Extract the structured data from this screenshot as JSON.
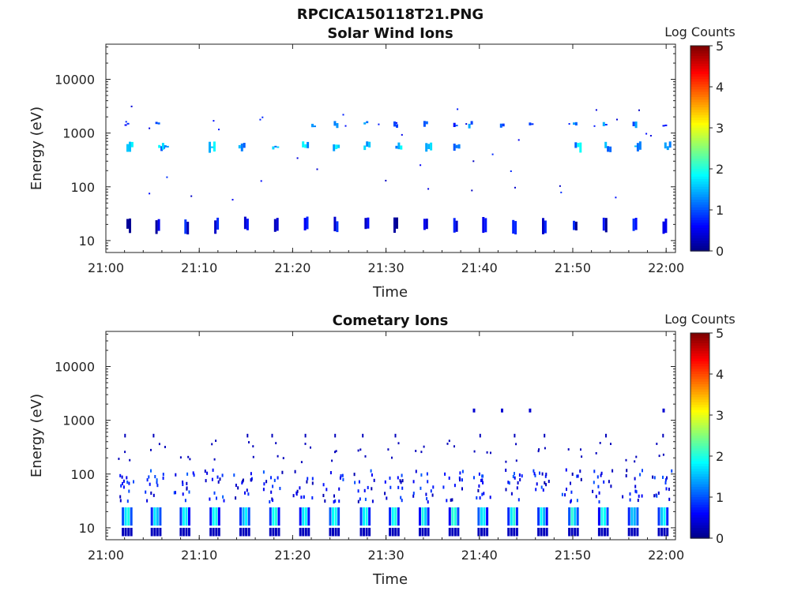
{
  "figure_title": "RPCICA150118T21.PNG",
  "colors": {
    "colormap": [
      "#00007f",
      "#0000ff",
      "#007fff",
      "#00ffff",
      "#7fff7f",
      "#ffff00",
      "#ff7f00",
      "#ff0000",
      "#7f0000"
    ]
  },
  "chart_data": [
    {
      "type": "heatmap",
      "title": "Solar Wind Ions",
      "xlabel": "Time",
      "ylabel": "Energy (eV)",
      "yscale": "log",
      "ylim": [
        6,
        45000
      ],
      "xlim": [
        "21:00",
        "22:01"
      ],
      "x_ticks": [
        "21:00",
        "21:10",
        "21:20",
        "21:30",
        "21:40",
        "21:50",
        "22:00"
      ],
      "y_ticks": [
        "10",
        "100",
        "1000",
        "10000"
      ],
      "colorbar": {
        "label": "Log Counts",
        "ticks": [
          "0",
          "1",
          "2",
          "3",
          "4",
          "5"
        ],
        "range": [
          0,
          5
        ]
      },
      "grid": false,
      "sweep_times_min": [
        2.2,
        5.3,
        8.4,
        11.6,
        14.8,
        18.0,
        21.2,
        24.4,
        27.7,
        30.8,
        34.0,
        37.2,
        40.3,
        43.5,
        46.7,
        50.0,
        53.2,
        56.4,
        59.6
      ],
      "bands": [
        {
          "name": "band-1500eV",
          "energy_ev": [
            1200,
            1700
          ],
          "times_min": [
            2.0,
            5.3,
            22.0,
            24.4,
            27.6,
            30.8,
            34.0,
            37.2,
            38.8,
            42.2,
            45.3,
            50.0,
            53.2,
            56.4,
            59.6
          ],
          "level": 1.0
        },
        {
          "name": "band-550eV",
          "energy_ev": [
            430,
            700
          ],
          "times_min": [
            2.2,
            5.6,
            6.0,
            11.0,
            14.2,
            17.8,
            21.0,
            24.3,
            27.6,
            31.0,
            34.2,
            37.2,
            50.2,
            53.4,
            56.6,
            59.8
          ],
          "level": 1.4
        },
        {
          "name": "band-18eV",
          "energy_ev": [
            13,
            28
          ],
          "times_min": [
            2.2,
            5.3,
            8.4,
            11.6,
            14.8,
            18.0,
            21.2,
            24.4,
            27.7,
            30.8,
            34.0,
            37.2,
            40.3,
            43.5,
            46.7,
            50.0,
            53.2,
            56.4,
            59.6
          ],
          "level": 0.35
        }
      ]
    },
    {
      "type": "heatmap",
      "title": "Cometary Ions",
      "xlabel": "Time",
      "ylabel": "Energy (eV)",
      "yscale": "log",
      "ylim": [
        6,
        45000
      ],
      "xlim": [
        "21:00",
        "22:01"
      ],
      "x_ticks": [
        "21:00",
        "21:10",
        "21:20",
        "21:30",
        "21:40",
        "21:50",
        "22:00"
      ],
      "y_ticks": [
        "10",
        "100",
        "1000",
        "10000"
      ],
      "colorbar": {
        "label": "Log Counts",
        "ticks": [
          "0",
          "1",
          "2",
          "3",
          "4",
          "5"
        ],
        "range": [
          0,
          5
        ]
      },
      "grid": false,
      "sweep_times_min": [
        2.2,
        5.3,
        8.4,
        11.6,
        14.8,
        18.0,
        21.2,
        24.4,
        27.7,
        30.8,
        34.0,
        37.2,
        40.3,
        43.5,
        46.7,
        50.0,
        53.2,
        56.4,
        59.6
      ],
      "bands": [
        {
          "name": "core-15eV",
          "energy_ev": [
            10,
            25
          ],
          "level": 1.6
        },
        {
          "name": "floor-8eV",
          "energy_ev": [
            7,
            10
          ],
          "level": 0.4
        },
        {
          "name": "spread-40-100eV",
          "energy_ev": [
            28,
            110
          ],
          "level": 0.6
        },
        {
          "name": "sparse-500eV",
          "energy_ev": [
            450,
            600
          ],
          "level": 0.4
        },
        {
          "name": "sparse-1500eV",
          "energy_ev": [
            1400,
            1650
          ],
          "times_min": [
            39.3,
            42.3,
            45.3,
            59.6
          ],
          "level": 0.4
        }
      ]
    }
  ]
}
